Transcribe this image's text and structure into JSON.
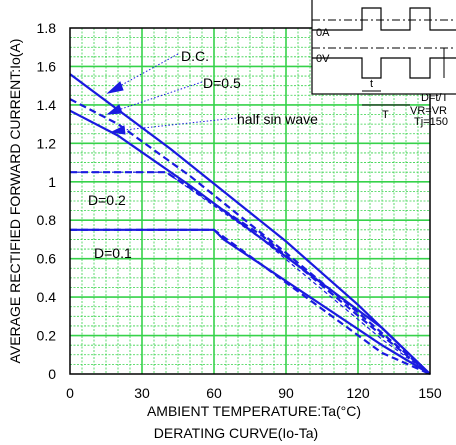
{
  "chart_data": {
    "type": "line",
    "xlabel": "AMBIENT TEMPERATURE:Ta(°C)",
    "ylabel": "AVERAGE RECTIFIED FORWARD CURRENT:Io(A)",
    "caption": "DERATING CURVE(Io-Ta)",
    "xlim": [
      0,
      150
    ],
    "ylim": [
      0,
      1.8
    ],
    "x_ticks": [
      "0",
      "30",
      "60",
      "90",
      "120",
      "150"
    ],
    "y_ticks": [
      "0",
      "0.2",
      "0.4",
      "0.6",
      "0.8",
      "1",
      "1.2",
      "1.4",
      "1.6",
      "1.8"
    ],
    "grid": true,
    "grid_color": "#36d24a",
    "line_color": "#1a1ae0",
    "series": [
      {
        "name": "D.C.",
        "style": "solid",
        "x": [
          0,
          42,
          90,
          120,
          150
        ],
        "y": [
          1.56,
          1.17,
          0.69,
          0.36,
          0
        ]
      },
      {
        "name": "D=0.5",
        "style": "dashed",
        "x": [
          0,
          20,
          50,
          90,
          120,
          150
        ],
        "y": [
          1.43,
          1.3,
          1.03,
          0.63,
          0.32,
          0
        ]
      },
      {
        "name": "half sin wave",
        "style": "solid",
        "x": [
          0,
          20,
          50,
          90,
          130,
          150
        ],
        "y": [
          1.37,
          1.24,
          0.98,
          0.61,
          0.24,
          0
        ]
      },
      {
        "name": "D=0.2",
        "style": "dashed",
        "x": [
          0,
          40,
          80,
          130,
          150
        ],
        "y": [
          1.05,
          1.05,
          0.72,
          0.2,
          0
        ]
      },
      {
        "name": "",
        "style": "thin-dashed",
        "x": [
          0,
          40,
          80,
          130,
          150
        ],
        "y": [
          1.05,
          1.05,
          0.7,
          0.18,
          0
        ]
      },
      {
        "name": "D=0.1",
        "style": "dashed",
        "x": [
          0,
          60,
          130,
          150
        ],
        "y": [
          0.75,
          0.75,
          0.11,
          0
        ]
      },
      {
        "name": "",
        "style": "solid",
        "x": [
          0,
          60,
          64,
          130,
          150
        ],
        "y": [
          0.75,
          0.75,
          0.7,
          0.15,
          0
        ]
      }
    ],
    "annotations": [
      {
        "text": "D.C."
      },
      {
        "text": "D=0.5"
      },
      {
        "text": "half sin wave"
      },
      {
        "text": "D=0.2"
      },
      {
        "text": "D=0.1"
      }
    ],
    "inset": {
      "labels": {
        "zero_a": "0A",
        "zero_v": "0V",
        "t": "t",
        "T": "T",
        "duty": "D=t/T",
        "vr": "VR=VR",
        "tj": "Tj=150"
      }
    }
  }
}
